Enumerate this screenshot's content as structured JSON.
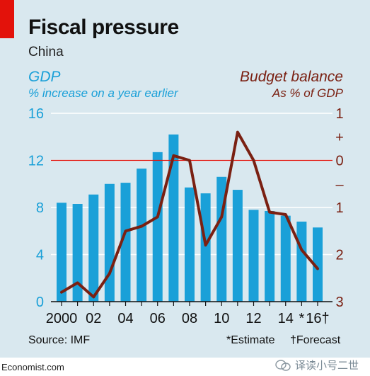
{
  "header": {
    "title": "Fiscal pressure",
    "subtitle": "China"
  },
  "left_axis": {
    "label": "GDP",
    "unit": "% increase on a year earlier"
  },
  "right_axis": {
    "label": "Budget balance",
    "unit": "As % of GDP"
  },
  "footer": {
    "source": "Source: IMF",
    "estimate": "*Estimate",
    "forecast": "†Forecast",
    "brand": "Economist.com",
    "watermark": "译读小号二世"
  },
  "colors": {
    "panel": "#d9e8ef",
    "bar": "#1aa0d8",
    "line": "#7a2012",
    "zero_line": "#e3120b",
    "accent": "#e3120b"
  },
  "chart_data": {
    "type": "bar",
    "x": [
      2000,
      2001,
      2002,
      2003,
      2004,
      2005,
      2006,
      2007,
      2008,
      2009,
      2010,
      2011,
      2012,
      2013,
      2014,
      2015,
      2016
    ],
    "x_tick_labels": [
      {
        "x": 2000,
        "label": "2000"
      },
      {
        "x": 2002,
        "label": "02"
      },
      {
        "x": 2004,
        "label": "04"
      },
      {
        "x": 2006,
        "label": "06"
      },
      {
        "x": 2008,
        "label": "08"
      },
      {
        "x": 2010,
        "label": "10"
      },
      {
        "x": 2012,
        "label": "12"
      },
      {
        "x": 2014,
        "label": "14"
      },
      {
        "x": 2015,
        "label": "*"
      },
      {
        "x": 2016,
        "label": "16†"
      }
    ],
    "series": [
      {
        "type": "bar",
        "axis": "left",
        "values": [
          8.4,
          8.3,
          9.1,
          10.0,
          10.1,
          11.3,
          12.7,
          14.2,
          9.7,
          9.2,
          10.6,
          9.5,
          7.8,
          7.7,
          7.3,
          6.8,
          6.3
        ]
      },
      {
        "type": "line",
        "axis": "right",
        "values": [
          -2.8,
          -2.6,
          -2.9,
          -2.4,
          -1.5,
          -1.4,
          -1.2,
          0.1,
          0.0,
          -1.8,
          -1.2,
          0.6,
          0.0,
          -1.1,
          -1.15,
          -1.9,
          -2.3
        ]
      }
    ],
    "left_ylim": [
      0,
      16
    ],
    "left_ticks": [
      {
        "value": 0,
        "label": "0"
      },
      {
        "value": 4,
        "label": "4"
      },
      {
        "value": 8,
        "label": "8"
      },
      {
        "value": 12,
        "label": "12"
      },
      {
        "value": 16,
        "label": "16"
      }
    ],
    "right_ylim": [
      -3,
      1
    ],
    "right_ticks": [
      {
        "value": 1,
        "label": "1"
      },
      {
        "value": 0.5,
        "label": "+"
      },
      {
        "value": 0,
        "label": "0"
      },
      {
        "value": -0.5,
        "label": "–"
      },
      {
        "value": -1,
        "label": "1"
      },
      {
        "value": -2,
        "label": "2"
      },
      {
        "value": -3,
        "label": "3"
      }
    ],
    "grid": true
  }
}
